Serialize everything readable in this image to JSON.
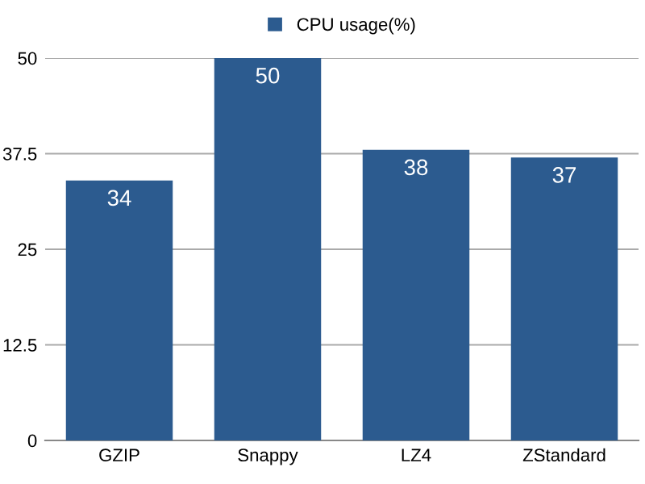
{
  "chart_data": {
    "type": "bar",
    "categories": [
      "GZIP",
      "Snappy",
      "LZ4",
      "ZStandard"
    ],
    "series": [
      {
        "name": "CPU usage(%)",
        "color": "#2c5b8f",
        "values": [
          34,
          50,
          38,
          37
        ]
      }
    ],
    "ylim": [
      0,
      50
    ],
    "yticks": [
      0,
      12.5,
      25,
      37.5,
      50
    ],
    "grid": "y",
    "legend": "top",
    "data_labels": true
  }
}
